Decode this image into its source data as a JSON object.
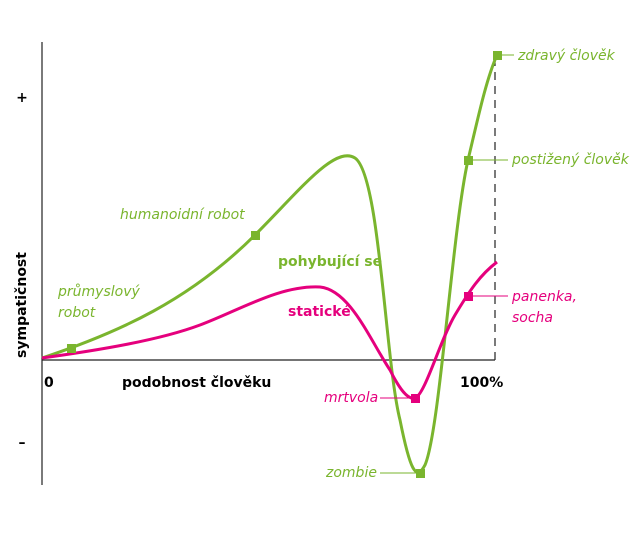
{
  "axes": {
    "y_title": "sympatičnost",
    "y_plus": "+",
    "y_minus": "–",
    "x_start": "0",
    "x_title": "podobnost člověku",
    "x_end": "100%"
  },
  "curves": {
    "moving": {
      "label": "pohybující se",
      "points": [
        "průmyslový",
        "robot",
        "humanoidní robot",
        "zombie",
        "postižený člověk",
        "zdravý člověk"
      ]
    },
    "still": {
      "label": "statické",
      "points": [
        "mrtvola",
        "panenka,",
        "socha"
      ]
    }
  }
}
